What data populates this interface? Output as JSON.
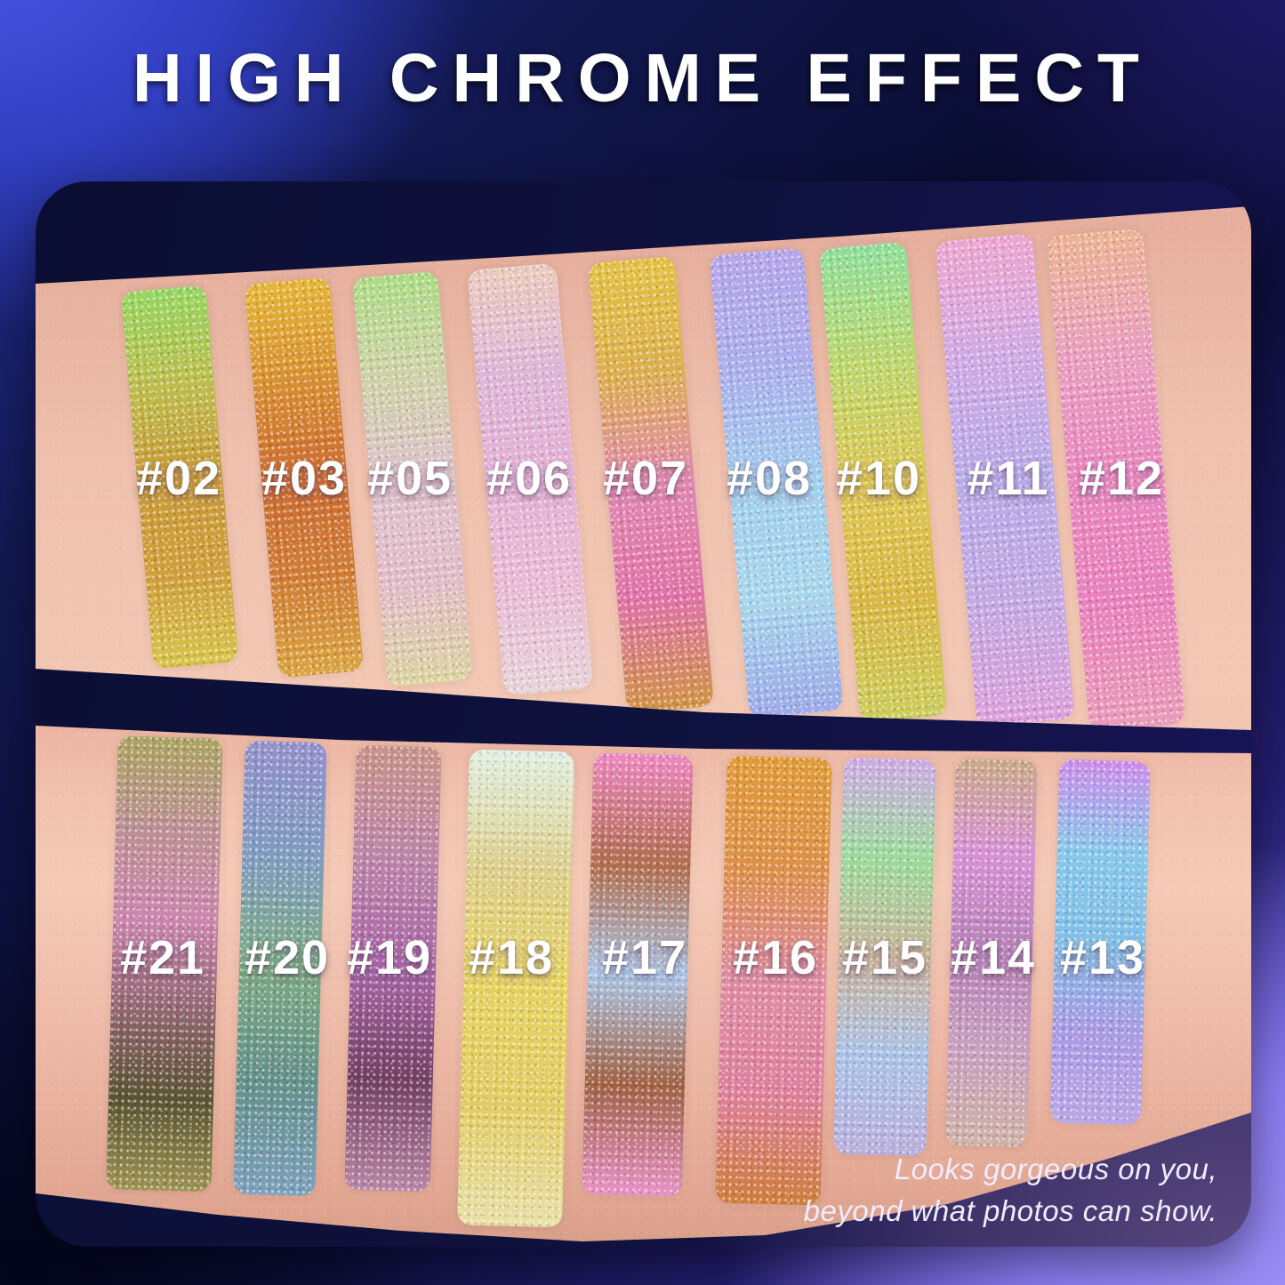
{
  "title": "HIGH CHROME EFFECT",
  "tagline": {
    "line1": "Looks gorgeous on you,",
    "line2": "beyond what photos can show."
  },
  "palette": {
    "background_top_left": "#4a55e2",
    "background_center": "#0a0d32",
    "background_bottom_right": "#a090f5",
    "photo_backdrop_navy": "#10123f",
    "photo_backdrop_purple": "#57487f",
    "skin_light": "#f2c8b4",
    "skin_shadow": "#e1a892",
    "headline_text": "#ffffff",
    "label_text": "#ffffff"
  },
  "swatch_rows": {
    "top": [
      {
        "label": "#02",
        "colors": [
          "#92d95e",
          "#bcc04a",
          "#c99a33",
          "#cf9e36",
          "#d8c548"
        ]
      },
      {
        "label": "#03",
        "colors": [
          "#e5b832",
          "#d98f2d",
          "#cd6a2e",
          "#d07b31",
          "#dba43c"
        ]
      },
      {
        "label": "#05",
        "colors": [
          "#aade84",
          "#cfd3a8",
          "#dec3cd",
          "#e2bcca",
          "#dcd6a0"
        ]
      },
      {
        "label": "#06",
        "colors": [
          "#eccdc0",
          "#dfb6da",
          "#e4b2d8",
          "#eabbd8",
          "#e8d5da"
        ]
      },
      {
        "label": "#07",
        "colors": [
          "#e3c342",
          "#ddb04b",
          "#e287b2",
          "#e170a8",
          "#d0923f"
        ]
      },
      {
        "label": "#08",
        "colors": [
          "#b3a6ef",
          "#a9aff0",
          "#9fd0f2",
          "#a5d8ef",
          "#99a9ec"
        ]
      },
      {
        "label": "#10",
        "colors": [
          "#8ae29b",
          "#bcd96a",
          "#dec84e",
          "#d9b83e",
          "#cace57"
        ]
      },
      {
        "label": "#11",
        "colors": [
          "#f0a6d2",
          "#cfaae8",
          "#b7abec",
          "#c3a9e6",
          "#dc9fdc"
        ]
      },
      {
        "label": "#12",
        "colors": [
          "#efb592",
          "#eb9ec2",
          "#ea86c1",
          "#e97fbe",
          "#eb9cba"
        ]
      }
    ],
    "bottom": [
      {
        "label": "#21",
        "colors": [
          "#a9a35e",
          "#bb8f92",
          "#cb84ae",
          "#8f6470",
          "#56512f",
          "#9c9550"
        ]
      },
      {
        "label": "#20",
        "colors": [
          "#9090ce",
          "#7d9bc2",
          "#78ab81",
          "#5f8f8a",
          "#7aa2c0"
        ]
      },
      {
        "label": "#19",
        "colors": [
          "#c79289",
          "#bb83a8",
          "#a763a8",
          "#6f3c62",
          "#b886a8"
        ]
      },
      {
        "label": "#18",
        "colors": [
          "#dff2e4",
          "#ddd089",
          "#e6d45c",
          "#e3ce62",
          "#e9e4a8"
        ]
      },
      {
        "label": "#17",
        "colors": [
          "#ef86c3",
          "#b06a4a",
          "#a9c6e8",
          "#9f5f41",
          "#ea93cb"
        ]
      },
      {
        "label": "#16",
        "colors": [
          "#e29a33",
          "#dd8f45",
          "#e08ba4",
          "#df7f9e",
          "#cf7c36"
        ]
      },
      {
        "label": "#15",
        "colors": [
          "#cdaae8",
          "#98dd9a",
          "#c9b39a",
          "#a9c4ea",
          "#b9b0e0"
        ]
      },
      {
        "label": "#14",
        "colors": [
          "#c9a987",
          "#d790d7",
          "#b57fb9",
          "#c8a0c0",
          "#cfb3a8"
        ]
      },
      {
        "label": "#13",
        "colors": [
          "#cc8bee",
          "#84c8ef",
          "#7fc0ea",
          "#a79ae8",
          "#b9a8ea"
        ]
      }
    ]
  }
}
